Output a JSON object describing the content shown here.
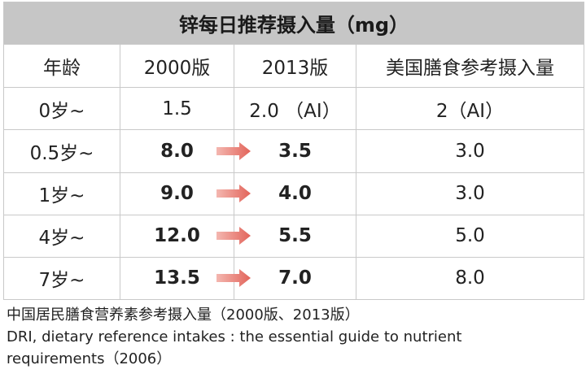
{
  "title": "锌每日推荐摄入量（mg）",
  "headers": [
    "年龄",
    "2000版",
    "2013版",
    "美国膳食参考摄入量"
  ],
  "rows": [
    {
      "age": "0岁~",
      "v2000": "1.5",
      "v2013": "2.0 （AI）",
      "us": "2（AI）",
      "highlight": false
    },
    {
      "age": "0.5岁~",
      "v2000": "8.0",
      "v2013": "3.5",
      "us": "3.0",
      "highlight": true
    },
    {
      "age": "1岁~",
      "v2000": "9.0",
      "v2013": "4.0",
      "us": "3.0",
      "highlight": true
    },
    {
      "age": "4岁~",
      "v2000": "12.0",
      "v2013": "5.5",
      "us": "5.0",
      "highlight": true
    },
    {
      "age": "7岁~",
      "v2000": "13.5",
      "v2013": "7.0",
      "us": "8.0",
      "highlight": true
    }
  ],
  "sources": [
    "中国居民膳食营养素参考摄入量（2000版、2013版）",
    "DRI, dietary reference intakes : the essential guide to nutrient",
    "requirements（2006）"
  ],
  "colors": {
    "highlight_text": "#b5141b",
    "arrow": "#e2645a",
    "title_bg": "#c6c6c6"
  },
  "icons": {
    "change_arrow": "arrow-right-icon"
  }
}
